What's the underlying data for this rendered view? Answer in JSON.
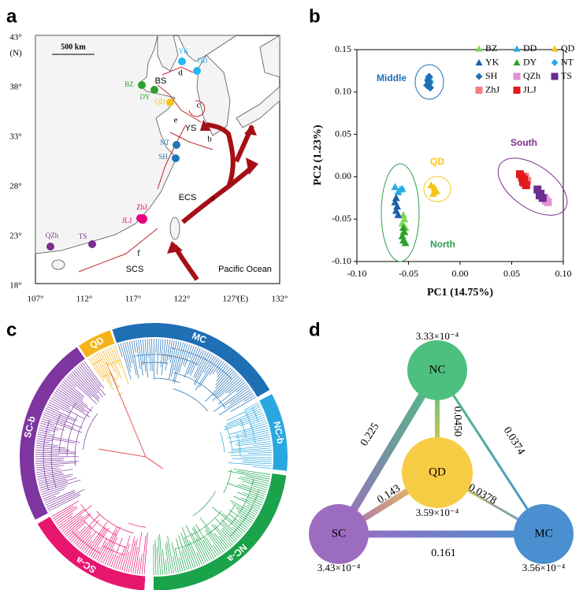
{
  "panel_labels": [
    "a",
    "b",
    "c",
    "d"
  ],
  "map": {
    "xticks": [
      "107°",
      "112°",
      "117°",
      "122°",
      "127°"
    ],
    "x_unit": "(E)",
    "x_last": "132°",
    "yticks": [
      "43°",
      "38°",
      "33°",
      "28°",
      "23°",
      "18°"
    ],
    "y_unit": "(N)",
    "scale": "500 km",
    "regions": [
      "BS",
      "YS",
      "ECS",
      "SCS",
      "Pacific Ocean"
    ],
    "currents": [
      "a",
      "b",
      "c",
      "d",
      "e",
      "f"
    ],
    "sites": [
      {
        "name": "YK",
        "color": "#29b6f6"
      },
      {
        "name": "DD",
        "color": "#29b6f6"
      },
      {
        "name": "BZ",
        "color": "#2ca02c"
      },
      {
        "name": "DY",
        "color": "#2ca02c"
      },
      {
        "name": "QD",
        "color": "#f5c518"
      },
      {
        "name": "NT",
        "color": "#1f77b4"
      },
      {
        "name": "SH",
        "color": "#1f77b4"
      },
      {
        "name": "ZhJ",
        "color": "#e6007e"
      },
      {
        "name": "JLJ",
        "color": "#e6007e"
      },
      {
        "name": "QZh",
        "color": "#7b2d8e"
      },
      {
        "name": "TS",
        "color": "#7b2d8e"
      }
    ]
  },
  "chart_data": {
    "type": "scatter",
    "xlabel": "PC1 (14.75%)",
    "ylabel": "PC2 (1.23%)",
    "xlim": [
      -0.1,
      0.1
    ],
    "ylim": [
      -0.1,
      0.15
    ],
    "xticks": [
      {
        "value": -0.1,
        "label": "-0.10"
      },
      -0.05,
      {
        "value": 0,
        "label": "0.00"
      },
      0.05,
      {
        "value": 0.1,
        "label": "0.10"
      }
    ],
    "yticks": [
      0.15,
      {
        "value": 0.1,
        "label": "0.10"
      },
      0.05,
      {
        "value": 0,
        "label": "0.00"
      },
      -0.05,
      {
        "value": -0.1,
        "label": "-0.10"
      }
    ],
    "annotations": [
      {
        "text": "Middle",
        "color": "#1f6fb5"
      },
      {
        "text": "QD",
        "color": "#f5c518"
      },
      {
        "text": "North",
        "color": "#2e9e4f"
      },
      {
        "text": "South",
        "color": "#7b2d8e"
      }
    ],
    "series": [
      {
        "name": "BZ",
        "color": "#7ed957",
        "marker": "triangle",
        "x": [
          -0.055,
          -0.054,
          -0.056,
          -0.053,
          -0.055
        ],
        "y": [
          -0.045,
          -0.05,
          -0.055,
          -0.06,
          -0.065
        ]
      },
      {
        "name": "DD",
        "color": "#29abe2",
        "marker": "triangle",
        "x": [
          -0.063,
          -0.058,
          -0.06,
          -0.056
        ],
        "y": [
          -0.012,
          -0.015,
          -0.018,
          -0.014
        ]
      },
      {
        "name": "QD",
        "color": "#f5c518",
        "marker": "triangle",
        "x": [
          -0.028,
          -0.025,
          -0.023,
          -0.026,
          -0.024
        ],
        "y": [
          -0.01,
          -0.013,
          -0.017,
          -0.02,
          -0.015
        ]
      },
      {
        "name": "YK",
        "color": "#1f5fa8",
        "marker": "triangle",
        "x": [
          -0.062,
          -0.063,
          -0.061,
          -0.062,
          -0.06
        ],
        "y": [
          -0.025,
          -0.03,
          -0.035,
          -0.04,
          -0.045
        ]
      },
      {
        "name": "DY",
        "color": "#2ca02c",
        "marker": "triangle",
        "x": [
          -0.055,
          -0.054,
          -0.056,
          -0.055,
          -0.053
        ],
        "y": [
          -0.06,
          -0.065,
          -0.07,
          -0.075,
          -0.078
        ]
      },
      {
        "name": "NT",
        "color": "#29abe2",
        "marker": "diamond",
        "x": [
          -0.031,
          -0.029,
          -0.03
        ],
        "y": [
          0.115,
          0.112,
          0.117
        ]
      },
      {
        "name": "SH",
        "color": "#1f6fb5",
        "marker": "diamond",
        "x": [
          -0.032,
          -0.03,
          -0.031,
          -0.029,
          -0.03
        ],
        "y": [
          0.108,
          0.11,
          0.113,
          0.105,
          0.118
        ]
      },
      {
        "name": "QZh",
        "color": "#e58fd6",
        "marker": "square",
        "x": [
          0.082,
          0.085,
          0.083
        ],
        "y": [
          -0.025,
          -0.03,
          -0.028
        ]
      },
      {
        "name": "TS",
        "color": "#6a2c91",
        "marker": "square",
        "x": [
          0.075,
          0.078,
          0.08,
          0.077
        ],
        "y": [
          -0.015,
          -0.02,
          -0.025,
          -0.022
        ]
      },
      {
        "name": "ZhJ",
        "color": "#f08080",
        "marker": "square",
        "x": [
          0.06,
          0.063,
          0.065,
          0.062
        ],
        "y": [
          -0.002,
          0,
          -0.005,
          -0.008
        ]
      },
      {
        "name": "JLJ",
        "color": "#e31a1c",
        "marker": "square",
        "x": [
          0.058,
          0.06,
          0.062,
          0.061,
          0.064
        ],
        "y": [
          0.003,
          0,
          -0.003,
          -0.006,
          -0.01
        ]
      }
    ]
  },
  "tree": {
    "clades": [
      {
        "name": "QD",
        "color": "#f5b21a"
      },
      {
        "name": "MC",
        "color": "#1f6fb5"
      },
      {
        "name": "NC-b",
        "color": "#29a8e0"
      },
      {
        "name": "NC-a",
        "color": "#1aa34a"
      },
      {
        "name": "SC-a",
        "color": "#e8156f"
      },
      {
        "name": "SC-b",
        "color": "#7e35a0"
      }
    ]
  },
  "network": {
    "nodes": [
      {
        "name": "NC",
        "value": "3.33×10⁻⁴",
        "color": "#4dbf7f"
      },
      {
        "name": "QD",
        "value": "3.59×10⁻⁴",
        "color": "#f7cc45"
      },
      {
        "name": "SC",
        "value": "3.43×10⁻⁴",
        "color": "#9b6cc0"
      },
      {
        "name": "MC",
        "value": "3.56×10⁻⁴",
        "color": "#4a90d0"
      }
    ],
    "edges": [
      {
        "from": 0,
        "to": 2,
        "label": "0.225"
      },
      {
        "from": 0,
        "to": 1,
        "label": "0.0450"
      },
      {
        "from": 0,
        "to": 3,
        "label": "0.0374"
      },
      {
        "from": 2,
        "to": 1,
        "label": "0.143"
      },
      {
        "from": 1,
        "to": 3,
        "label": "0.0378"
      },
      {
        "from": 2,
        "to": 3,
        "label": "0.161"
      }
    ]
  }
}
